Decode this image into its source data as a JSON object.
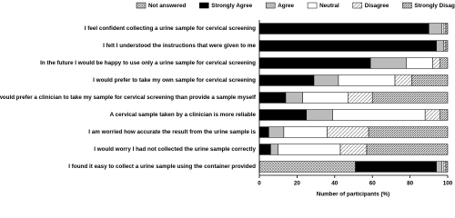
{
  "chart_data": {
    "type": "stacked-barh",
    "xlabel": "Number of participants (%)",
    "categories": [
      "I feel confident collecting a urine sample for cervical screening",
      "I felt I understood the instructions that were given to me",
      "In the future I would be happy to use only a urine sample for cervical screening",
      "I would prefer to take my own sample for cervical screening",
      "I would prefer a clinician to take my sample for cervical screening than provide a sample myself",
      "A cervical sample taken by a clinician is more reliable",
      "I am worried how accurate the result from the urine sample is",
      "I would worry I had not collected the urine sample correctly",
      "I found it easy to collect a urine sample using the container provided"
    ],
    "series": [
      {
        "name": "Not answered",
        "color": "#888888",
        "pattern": "cross",
        "values": [
          0,
          0,
          0,
          0,
          0,
          0,
          0,
          0,
          51
        ]
      },
      {
        "name": "Strongly Agree",
        "color": "#000000",
        "pattern": "solid",
        "values": [
          90,
          94,
          59,
          29,
          14,
          25,
          5,
          6,
          43
        ]
      },
      {
        "name": "Agree",
        "color": "#bbbbbb",
        "pattern": "solid",
        "values": [
          7,
          4,
          19,
          13,
          9,
          14,
          8,
          4,
          3
        ]
      },
      {
        "name": "Neutral",
        "color": "#ffffff",
        "pattern": "solid",
        "values": [
          1,
          0,
          14,
          30,
          24,
          49,
          23,
          33,
          1
        ]
      },
      {
        "name": "Disagree",
        "color": "#999999",
        "pattern": "diagonal",
        "values": [
          1,
          1,
          4,
          9,
          13,
          8,
          22,
          14,
          1
        ]
      },
      {
        "name": "Strongly Disagree",
        "color": "#444444",
        "pattern": "dense-diagonal",
        "values": [
          1,
          1,
          4,
          19,
          40,
          4,
          42,
          43,
          1
        ]
      }
    ],
    "xlim": [
      0,
      100
    ],
    "xticks": [
      0,
      20,
      40,
      60,
      80,
      100
    ]
  }
}
